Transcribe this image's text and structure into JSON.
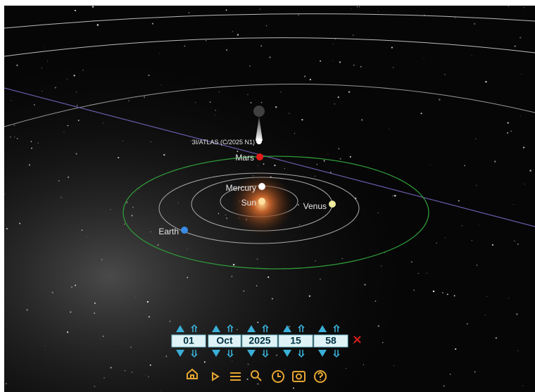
{
  "comet": {
    "label": "3I/ATLAS (C/2025 N1)"
  },
  "bodies": [
    {
      "label": "Mars"
    },
    {
      "label": "Mercury"
    },
    {
      "label": "Sun"
    },
    {
      "label": "Venus"
    },
    {
      "label": "Earth"
    }
  ],
  "date": {
    "day": "01",
    "month": "Oct",
    "year": "2025",
    "hour": "15",
    "minute": "58"
  }
}
